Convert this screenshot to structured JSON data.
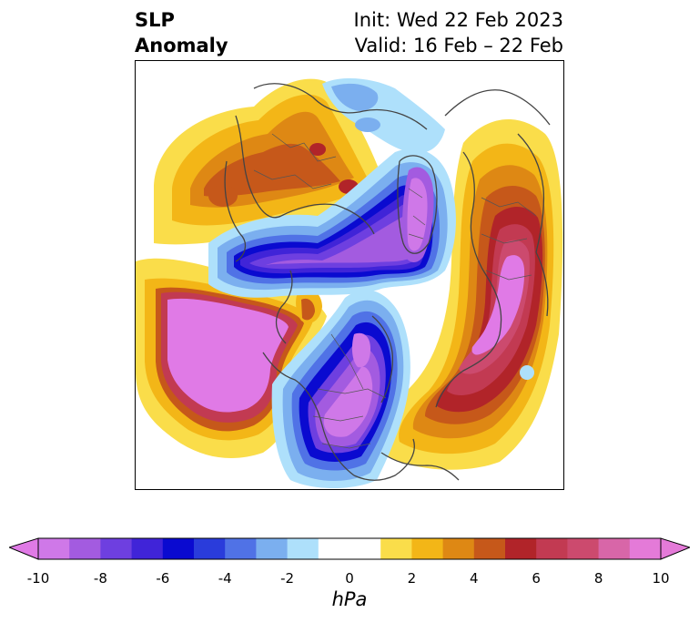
{
  "header": {
    "title_line1": "SLP",
    "title_line2": "Anomaly",
    "init": "Init: Wed 22 Feb 2023",
    "valid": "Valid: 16 Feb – 22 Feb"
  },
  "map": {
    "projection": "polar stereographic (North Pole)",
    "field": "sea level pressure anomaly"
  },
  "colorbar": {
    "units": "hPa",
    "extend": "both",
    "levels": [
      -10,
      -9,
      -8,
      -7,
      -6,
      -5,
      -4,
      -3,
      -2,
      -1,
      1,
      2,
      3,
      4,
      5,
      6,
      7,
      8,
      9,
      10
    ],
    "tick_labels": [
      "-10",
      "-8",
      "-6",
      "-4",
      "-2",
      "0",
      "2",
      "4",
      "6",
      "8",
      "10"
    ],
    "colors": {
      "under": "#e07ae6",
      "bins": [
        "#cf78e8",
        "#a35be0",
        "#6e3fe0",
        "#4024d8",
        "#0a0ad0",
        "#2a3cdb",
        "#5072e6",
        "#7bafef",
        "#aee0fb",
        "#ffffff",
        "#ffffff",
        "#fadd4a",
        "#f3b617",
        "#de8814",
        "#c6581a",
        "#b12429",
        "#c23a52",
        "#cc4a6e",
        "#d866a8",
        "#e47ad8"
      ],
      "over": "#e47ad8"
    }
  }
}
